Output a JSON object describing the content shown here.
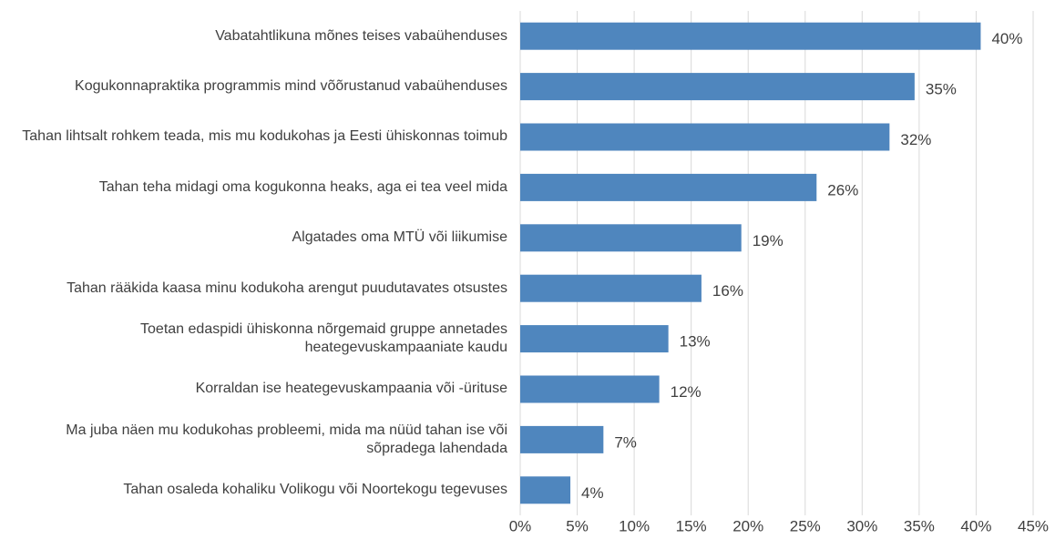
{
  "chart_data": {
    "type": "hbar",
    "categories": [
      "Vabatahtlikuna mõnes teises vabaühenduses",
      "Kogukonnapraktika programmis mind võõrustanud vabaühenduses",
      "Tahan lihtsalt rohkem teada, mis mu kodukohas ja Eesti ühiskonnas toimub",
      "Tahan teha midagi oma kogukonna heaks, aga ei tea veel mida",
      "Algatades oma MTÜ või liikumise",
      "Tahan rääkida kaasa minu kodukoha arengut puudutavates otsustes",
      "Toetan edaspidi ühiskonna nõrgemaid gruppe annetades heategevuskampaaniate kaudu",
      "Korraldan ise heategevuskampaania või -ürituse",
      "Ma juba näen mu kodukohas probleemi, mida ma nüüd tahan ise või sõpradega lahendada",
      "Tahan osaleda kohaliku Volikogu või Noortekogu tegevuses"
    ],
    "values": [
      40.4,
      34.6,
      32.4,
      26.0,
      19.4,
      15.9,
      13.0,
      12.2,
      7.3,
      4.4
    ],
    "value_labels": [
      "40%",
      "35%",
      "32%",
      "26%",
      "19%",
      "16%",
      "13%",
      "12%",
      "7%",
      "4%"
    ],
    "color": "#4f86be",
    "xlim": [
      0,
      45
    ],
    "xticks": [
      {
        "value": 0,
        "label": "0%"
      },
      {
        "value": 5,
        "label": "5%"
      },
      {
        "value": 10,
        "label": "10%"
      },
      {
        "value": 15,
        "label": "15%"
      },
      {
        "value": 20,
        "label": "20%"
      },
      {
        "value": 25,
        "label": "25%"
      },
      {
        "value": 30,
        "label": "30%"
      },
      {
        "value": 35,
        "label": "35%"
      },
      {
        "value": 40,
        "label": "40%"
      },
      {
        "value": 45,
        "label": "45%"
      }
    ],
    "grid": true
  }
}
